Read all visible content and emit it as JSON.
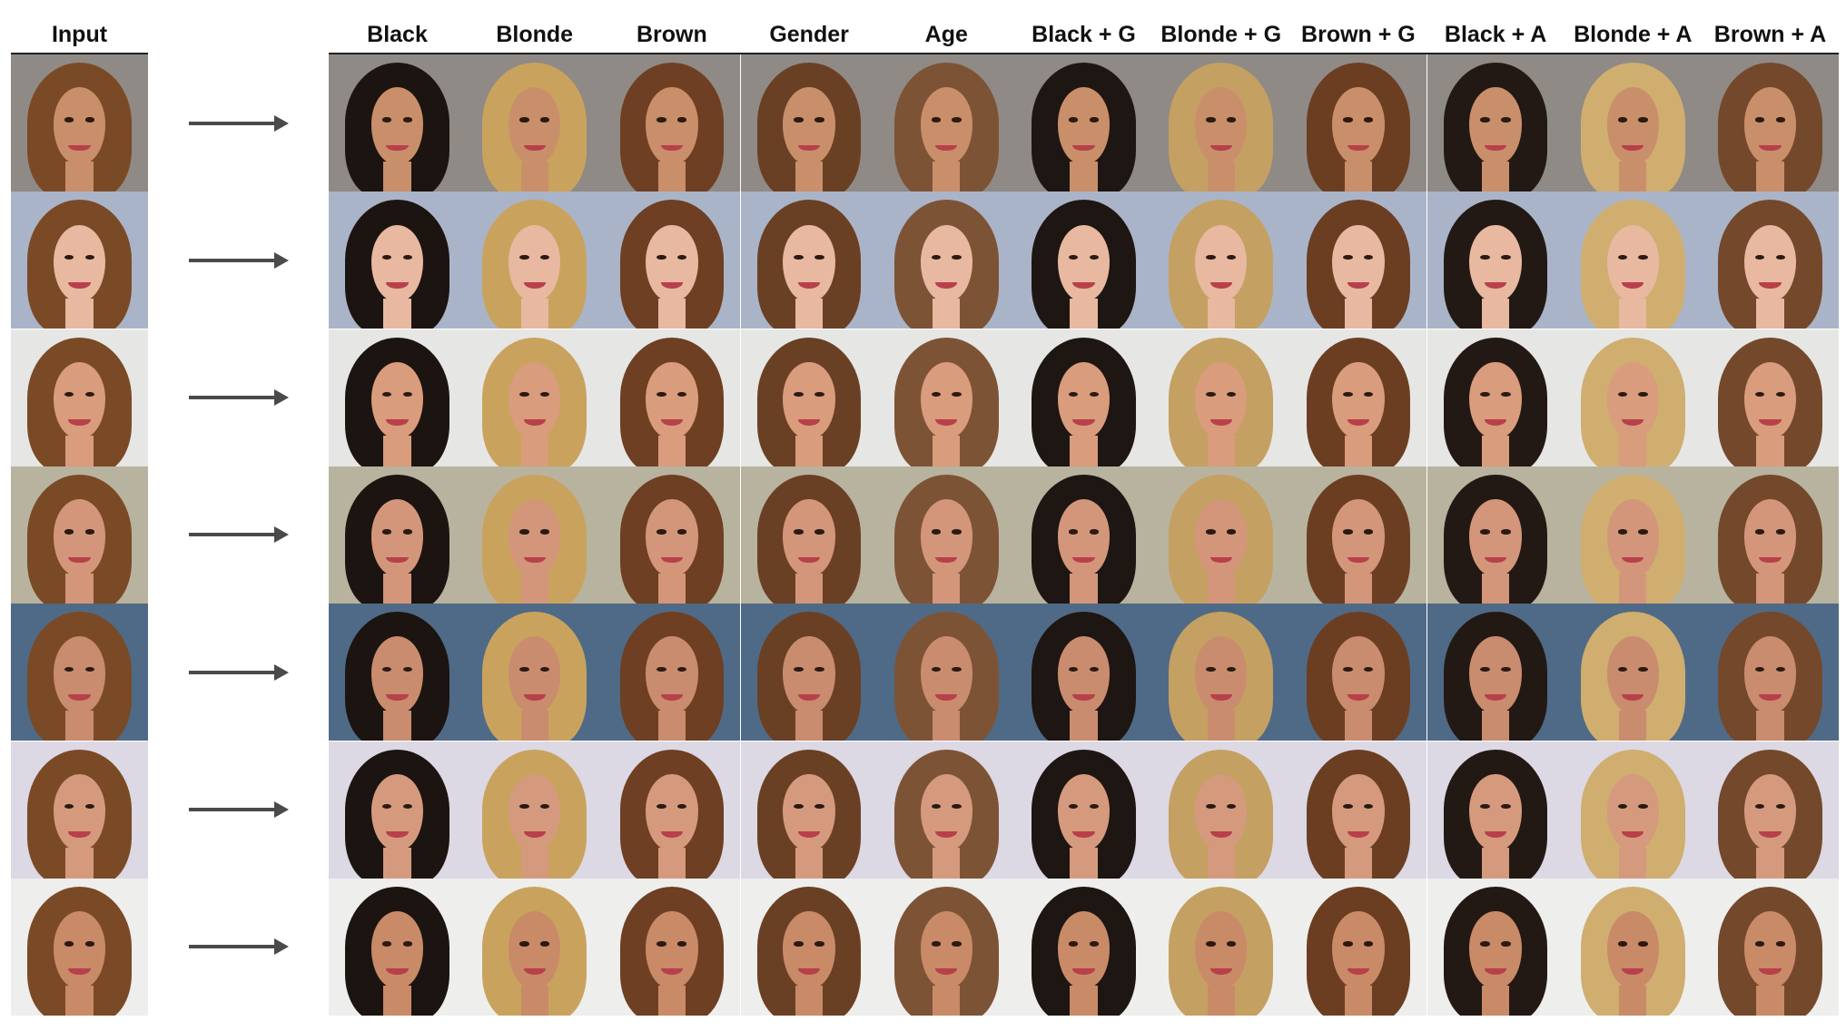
{
  "headers": {
    "input": "Input",
    "outputs": [
      "Black",
      "Blonde",
      "Brown",
      "Gender",
      "Age",
      "Black + G",
      "Blonde + G",
      "Brown + G",
      "Black + A",
      "Blonde + A",
      "Brown + A"
    ]
  },
  "colors": {
    "arrow": "#4a4a4a",
    "header_rule": "#222222",
    "hair": {
      "Input": "#7a4a26",
      "Black": "#1c1410",
      "Blonde": "#c9a35e",
      "Brown": "#6e3f22",
      "Gender": "#6a4024",
      "Age": "#7d5336",
      "Black + G": "#1e1612",
      "Blonde + G": "#c4a062",
      "Brown + G": "#6b3e22",
      "Black + A": "#231914",
      "Blonde + A": "#cfae70",
      "Brown + A": "#74482b"
    },
    "row_backgrounds": [
      "#8f8a86",
      "#aab4c8",
      "#e6e6e4",
      "#b8b39e",
      "#4f6a86",
      "#dcd8e4",
      "#eeeeec"
    ],
    "row_skin": [
      "#c98f6a",
      "#e8b8a0",
      "#d99c7c",
      "#d3967a",
      "#c98c6e",
      "#d59a7e",
      "#c98a68"
    ]
  },
  "rows": [
    {
      "id": "row-1"
    },
    {
      "id": "row-2"
    },
    {
      "id": "row-3"
    },
    {
      "id": "row-4"
    },
    {
      "id": "row-5"
    },
    {
      "id": "row-6"
    },
    {
      "id": "row-7"
    }
  ]
}
